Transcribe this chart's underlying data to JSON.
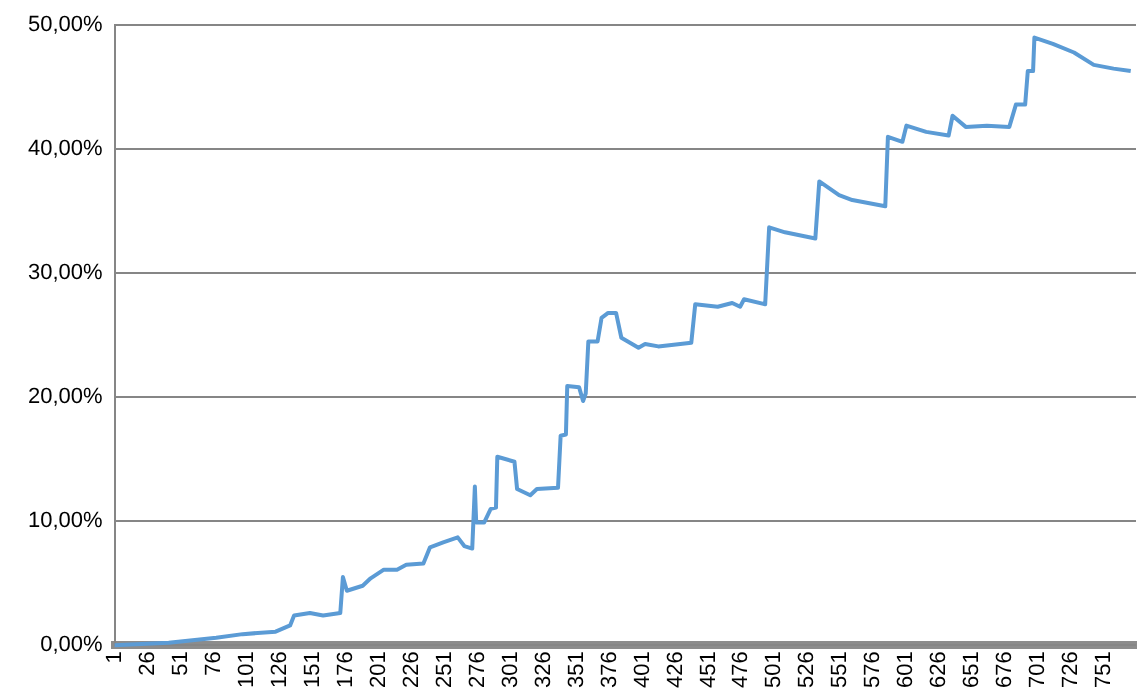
{
  "chart_data": {
    "type": "line",
    "series": [
      {
        "color": "#5b9bd5",
        "x": [
          1,
          42,
          78,
          98,
          123,
          134,
          137,
          149,
          159,
          172,
          174,
          177,
          189,
          195,
          205,
          215,
          222,
          235,
          240,
          250,
          261,
          266,
          272,
          274,
          275,
          281,
          286,
          290,
          291,
          304,
          306,
          316,
          321,
          337,
          339,
          343,
          344,
          353,
          356,
          358,
          360,
          367,
          370,
          375,
          381,
          385,
          398,
          403,
          413,
          438,
          441,
          458,
          469,
          475,
          478,
          494,
          497,
          509,
          532,
          535,
          550,
          560,
          585,
          587,
          598,
          601,
          616,
          633,
          636,
          646,
          662,
          679,
          684,
          691,
          693,
          697,
          698,
          712,
          728,
          743,
          758,
          771
        ],
        "values": [
          0,
          0.2,
          0.6,
          0.9,
          1.1,
          1.6,
          2.4,
          2.6,
          2.4,
          2.6,
          5.5,
          4.4,
          4.8,
          5.4,
          6.1,
          6.1,
          6.5,
          6.6,
          7.9,
          8.3,
          8.7,
          8,
          7.8,
          12.8,
          9.9,
          9.9,
          11,
          11.1,
          15.2,
          14.8,
          12.6,
          12.1,
          12.6,
          12.7,
          16.9,
          17,
          20.9,
          20.8,
          19.7,
          20.3,
          24.5,
          24.5,
          26.4,
          26.8,
          26.8,
          24.8,
          24,
          24.3,
          24.1,
          24.4,
          27.5,
          27.3,
          27.6,
          27.3,
          27.9,
          27.5,
          33.7,
          33.3,
          32.8,
          37.4,
          36.3,
          35.9,
          35.4,
          41,
          40.6,
          41.9,
          41.4,
          41.1,
          42.7,
          41.8,
          41.9,
          41.8,
          43.6,
          43.6,
          46.3,
          46.3,
          49,
          48.5,
          47.8,
          46.8,
          46.5,
          46.3
        ]
      }
    ],
    "xlim": [
      1,
      775
    ],
    "xticks": [
      1,
      26,
      51,
      76,
      101,
      126,
      151,
      176,
      201,
      226,
      251,
      276,
      301,
      326,
      351,
      376,
      401,
      426,
      451,
      476,
      501,
      526,
      551,
      576,
      601,
      626,
      651,
      676,
      701,
      726,
      751
    ],
    "ylim": [
      0,
      50
    ],
    "yticks": [
      {
        "value": 0,
        "label": "0,00%"
      },
      {
        "value": 10,
        "label": "10,00%"
      },
      {
        "value": 20,
        "label": "20,00%"
      },
      {
        "value": 30,
        "label": "30,00%"
      },
      {
        "value": 40,
        "label": "40,00%"
      },
      {
        "value": 50,
        "label": "50,00%"
      }
    ],
    "grid": "y",
    "legend": false,
    "marker": "none",
    "line_style": "solid"
  }
}
